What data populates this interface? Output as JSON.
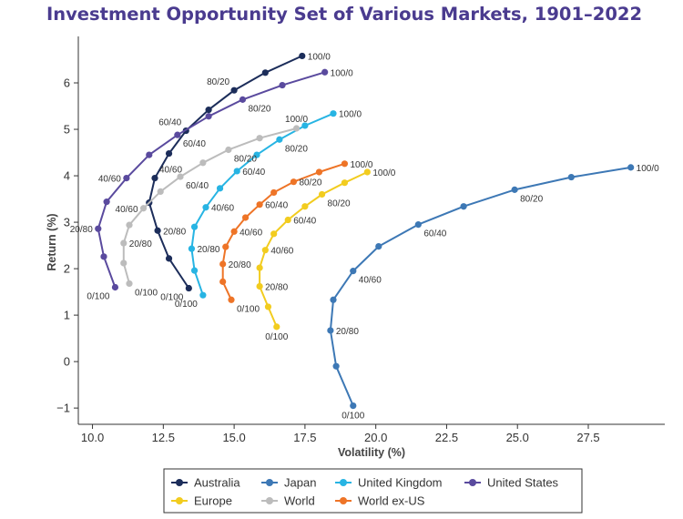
{
  "chart_data": {
    "type": "line",
    "title": "Investment Opportunity Set of Various Markets, 1901–2022",
    "xlabel": "Volatility (%)",
    "ylabel": "Return (%)",
    "xlim": [
      9.5,
      30.2
    ],
    "ylim": [
      -1.35,
      7.0
    ],
    "xticks": [
      "10.0",
      "12.5",
      "15.0",
      "17.5",
      "20.0",
      "22.5",
      "25.0",
      "27.5"
    ],
    "xtick_values": [
      10.0,
      12.5,
      15.0,
      17.5,
      20.0,
      22.5,
      25.0,
      27.5
    ],
    "yticks": [
      "−1",
      "0",
      "1",
      "2",
      "3",
      "4",
      "5",
      "6"
    ],
    "ytick_values": [
      -1,
      0,
      1,
      2,
      3,
      4,
      5,
      6
    ],
    "grid": false,
    "legend_position": "bottom",
    "series": [
      {
        "name": "Australia",
        "color": "#1c2d5a",
        "points": [
          [
            13.4,
            1.58
          ],
          [
            12.7,
            2.22
          ],
          [
            12.3,
            2.82
          ],
          [
            12.0,
            3.42
          ],
          [
            12.2,
            3.95
          ],
          [
            12.7,
            4.48
          ],
          [
            13.3,
            4.97
          ],
          [
            14.1,
            5.42
          ],
          [
            15.0,
            5.84
          ],
          [
            16.1,
            6.22
          ],
          [
            17.4,
            6.58
          ]
        ],
        "labels": [
          {
            "text": "0/100",
            "x": 13.4,
            "y": 1.58,
            "pos": "sw"
          },
          {
            "text": "20/80",
            "x": 12.3,
            "y": 2.82,
            "pos": "e"
          },
          {
            "text": "40/60",
            "x": 12.2,
            "y": 3.95,
            "pos": "ne"
          },
          {
            "text": "60/40",
            "x": 13.3,
            "y": 4.97,
            "pos": "nw"
          },
          {
            "text": "80/20",
            "x": 15.0,
            "y": 5.84,
            "pos": "nw"
          },
          {
            "text": "100/0",
            "x": 17.4,
            "y": 6.58,
            "pos": "e"
          }
        ]
      },
      {
        "name": "Japan",
        "color": "#3d78b5",
        "points": [
          [
            19.2,
            -0.95
          ],
          [
            18.6,
            -0.1
          ],
          [
            18.4,
            0.67
          ],
          [
            18.5,
            1.33
          ],
          [
            19.2,
            1.95
          ],
          [
            20.1,
            2.48
          ],
          [
            21.5,
            2.95
          ],
          [
            23.1,
            3.34
          ],
          [
            24.9,
            3.7
          ],
          [
            26.9,
            3.97
          ],
          [
            29.0,
            4.18
          ]
        ],
        "labels": [
          {
            "text": "0/100",
            "x": 19.2,
            "y": -0.95,
            "pos": "s"
          },
          {
            "text": "20/80",
            "x": 18.4,
            "y": 0.67,
            "pos": "e"
          },
          {
            "text": "40/60",
            "x": 19.2,
            "y": 1.95,
            "pos": "se"
          },
          {
            "text": "60/40",
            "x": 21.5,
            "y": 2.95,
            "pos": "se"
          },
          {
            "text": "80/20",
            "x": 24.9,
            "y": 3.7,
            "pos": "se"
          },
          {
            "text": "100/0",
            "x": 29.0,
            "y": 4.18,
            "pos": "e"
          }
        ]
      },
      {
        "name": "United Kingdom",
        "color": "#27b4e3",
        "points": [
          [
            13.9,
            1.43
          ],
          [
            13.6,
            1.96
          ],
          [
            13.5,
            2.43
          ],
          [
            13.6,
            2.9
          ],
          [
            14.0,
            3.32
          ],
          [
            14.5,
            3.73
          ],
          [
            15.1,
            4.1
          ],
          [
            15.8,
            4.45
          ],
          [
            16.6,
            4.78
          ],
          [
            17.5,
            5.08
          ],
          [
            18.5,
            5.34
          ]
        ],
        "labels": [
          {
            "text": "0/100",
            "x": 13.9,
            "y": 1.43,
            "pos": "sw"
          },
          {
            "text": "20/80",
            "x": 13.5,
            "y": 2.43,
            "pos": "e"
          },
          {
            "text": "40/60",
            "x": 14.0,
            "y": 3.32,
            "pos": "e"
          },
          {
            "text": "60/40",
            "x": 15.1,
            "y": 4.1,
            "pos": "e"
          },
          {
            "text": "80/20",
            "x": 16.6,
            "y": 4.78,
            "pos": "se"
          },
          {
            "text": "100/0",
            "x": 18.5,
            "y": 5.34,
            "pos": "e"
          }
        ]
      },
      {
        "name": "United States",
        "color": "#5a4a9e",
        "points": [
          [
            10.8,
            1.6
          ],
          [
            10.4,
            2.26
          ],
          [
            10.2,
            2.86
          ],
          [
            10.5,
            3.44
          ],
          [
            11.2,
            3.95
          ],
          [
            12.0,
            4.45
          ],
          [
            13.0,
            4.88
          ],
          [
            14.1,
            5.28
          ],
          [
            15.3,
            5.64
          ],
          [
            16.7,
            5.95
          ],
          [
            18.2,
            6.23
          ]
        ],
        "labels": [
          {
            "text": "0/100",
            "x": 10.8,
            "y": 1.6,
            "pos": "sw"
          },
          {
            "text": "20/80",
            "x": 10.2,
            "y": 2.86,
            "pos": "w"
          },
          {
            "text": "40/60",
            "x": 11.2,
            "y": 3.95,
            "pos": "w"
          },
          {
            "text": "60/40",
            "x": 13.0,
            "y": 4.88,
            "pos": "se"
          },
          {
            "text": "80/20",
            "x": 15.3,
            "y": 5.64,
            "pos": "se"
          },
          {
            "text": "100/0",
            "x": 18.2,
            "y": 6.23,
            "pos": "e"
          }
        ]
      },
      {
        "name": "Europe",
        "color": "#f2cc1f",
        "points": [
          [
            16.5,
            0.75
          ],
          [
            16.2,
            1.18
          ],
          [
            15.9,
            1.62
          ],
          [
            15.9,
            2.02
          ],
          [
            16.1,
            2.4
          ],
          [
            16.4,
            2.75
          ],
          [
            16.9,
            3.05
          ],
          [
            17.5,
            3.34
          ],
          [
            18.1,
            3.6
          ],
          [
            18.9,
            3.85
          ],
          [
            19.7,
            4.08
          ]
        ],
        "labels": [
          {
            "text": "0/100",
            "x": 16.5,
            "y": 0.75,
            "pos": "s"
          },
          {
            "text": "20/80",
            "x": 15.9,
            "y": 1.62,
            "pos": "e"
          },
          {
            "text": "40/60",
            "x": 16.1,
            "y": 2.4,
            "pos": "e"
          },
          {
            "text": "60/40",
            "x": 16.9,
            "y": 3.05,
            "pos": "e"
          },
          {
            "text": "80/20",
            "x": 18.1,
            "y": 3.6,
            "pos": "se"
          },
          {
            "text": "100/0",
            "x": 19.7,
            "y": 4.08,
            "pos": "e"
          }
        ]
      },
      {
        "name": "World",
        "color": "#bcbcbc",
        "points": [
          [
            11.3,
            1.68
          ],
          [
            11.1,
            2.12
          ],
          [
            11.1,
            2.55
          ],
          [
            11.3,
            2.94
          ],
          [
            11.8,
            3.3
          ],
          [
            12.4,
            3.66
          ],
          [
            13.1,
            3.98
          ],
          [
            13.9,
            4.28
          ],
          [
            14.8,
            4.56
          ],
          [
            15.9,
            4.81
          ],
          [
            17.2,
            5.02
          ]
        ],
        "labels": [
          {
            "text": "0/100",
            "x": 11.3,
            "y": 1.68,
            "pos": "se"
          },
          {
            "text": "20/80",
            "x": 11.1,
            "y": 2.55,
            "pos": "e"
          },
          {
            "text": "40/60",
            "x": 11.8,
            "y": 3.3,
            "pos": "w"
          },
          {
            "text": "60/40",
            "x": 13.1,
            "y": 3.98,
            "pos": "se"
          },
          {
            "text": "80/20",
            "x": 14.8,
            "y": 4.56,
            "pos": "se"
          },
          {
            "text": "100/0",
            "x": 17.2,
            "y": 5.02,
            "pos": "n"
          }
        ]
      },
      {
        "name": "World ex-US",
        "color": "#ee7427",
        "points": [
          [
            14.9,
            1.33
          ],
          [
            14.6,
            1.72
          ],
          [
            14.6,
            2.1
          ],
          [
            14.7,
            2.47
          ],
          [
            15.0,
            2.8
          ],
          [
            15.4,
            3.1
          ],
          [
            15.9,
            3.38
          ],
          [
            16.4,
            3.64
          ],
          [
            17.1,
            3.87
          ],
          [
            18.0,
            4.08
          ],
          [
            18.9,
            4.26
          ]
        ],
        "labels": [
          {
            "text": "0/100",
            "x": 14.9,
            "y": 1.33,
            "pos": "se"
          },
          {
            "text": "20/80",
            "x": 14.6,
            "y": 2.1,
            "pos": "e"
          },
          {
            "text": "40/60",
            "x": 15.0,
            "y": 2.8,
            "pos": "e"
          },
          {
            "text": "60/40",
            "x": 15.9,
            "y": 3.38,
            "pos": "e"
          },
          {
            "text": "80/20",
            "x": 17.1,
            "y": 3.87,
            "pos": "e"
          },
          {
            "text": "100/0",
            "x": 18.9,
            "y": 4.26,
            "pos": "e"
          }
        ]
      }
    ],
    "legend_rows": [
      [
        "Australia",
        "Japan",
        "United Kingdom",
        "United States"
      ],
      [
        "Europe",
        "World",
        "World ex-US"
      ]
    ]
  },
  "theme": {
    "title_color": "#4a3b8f",
    "axis_color": "#333333"
  }
}
